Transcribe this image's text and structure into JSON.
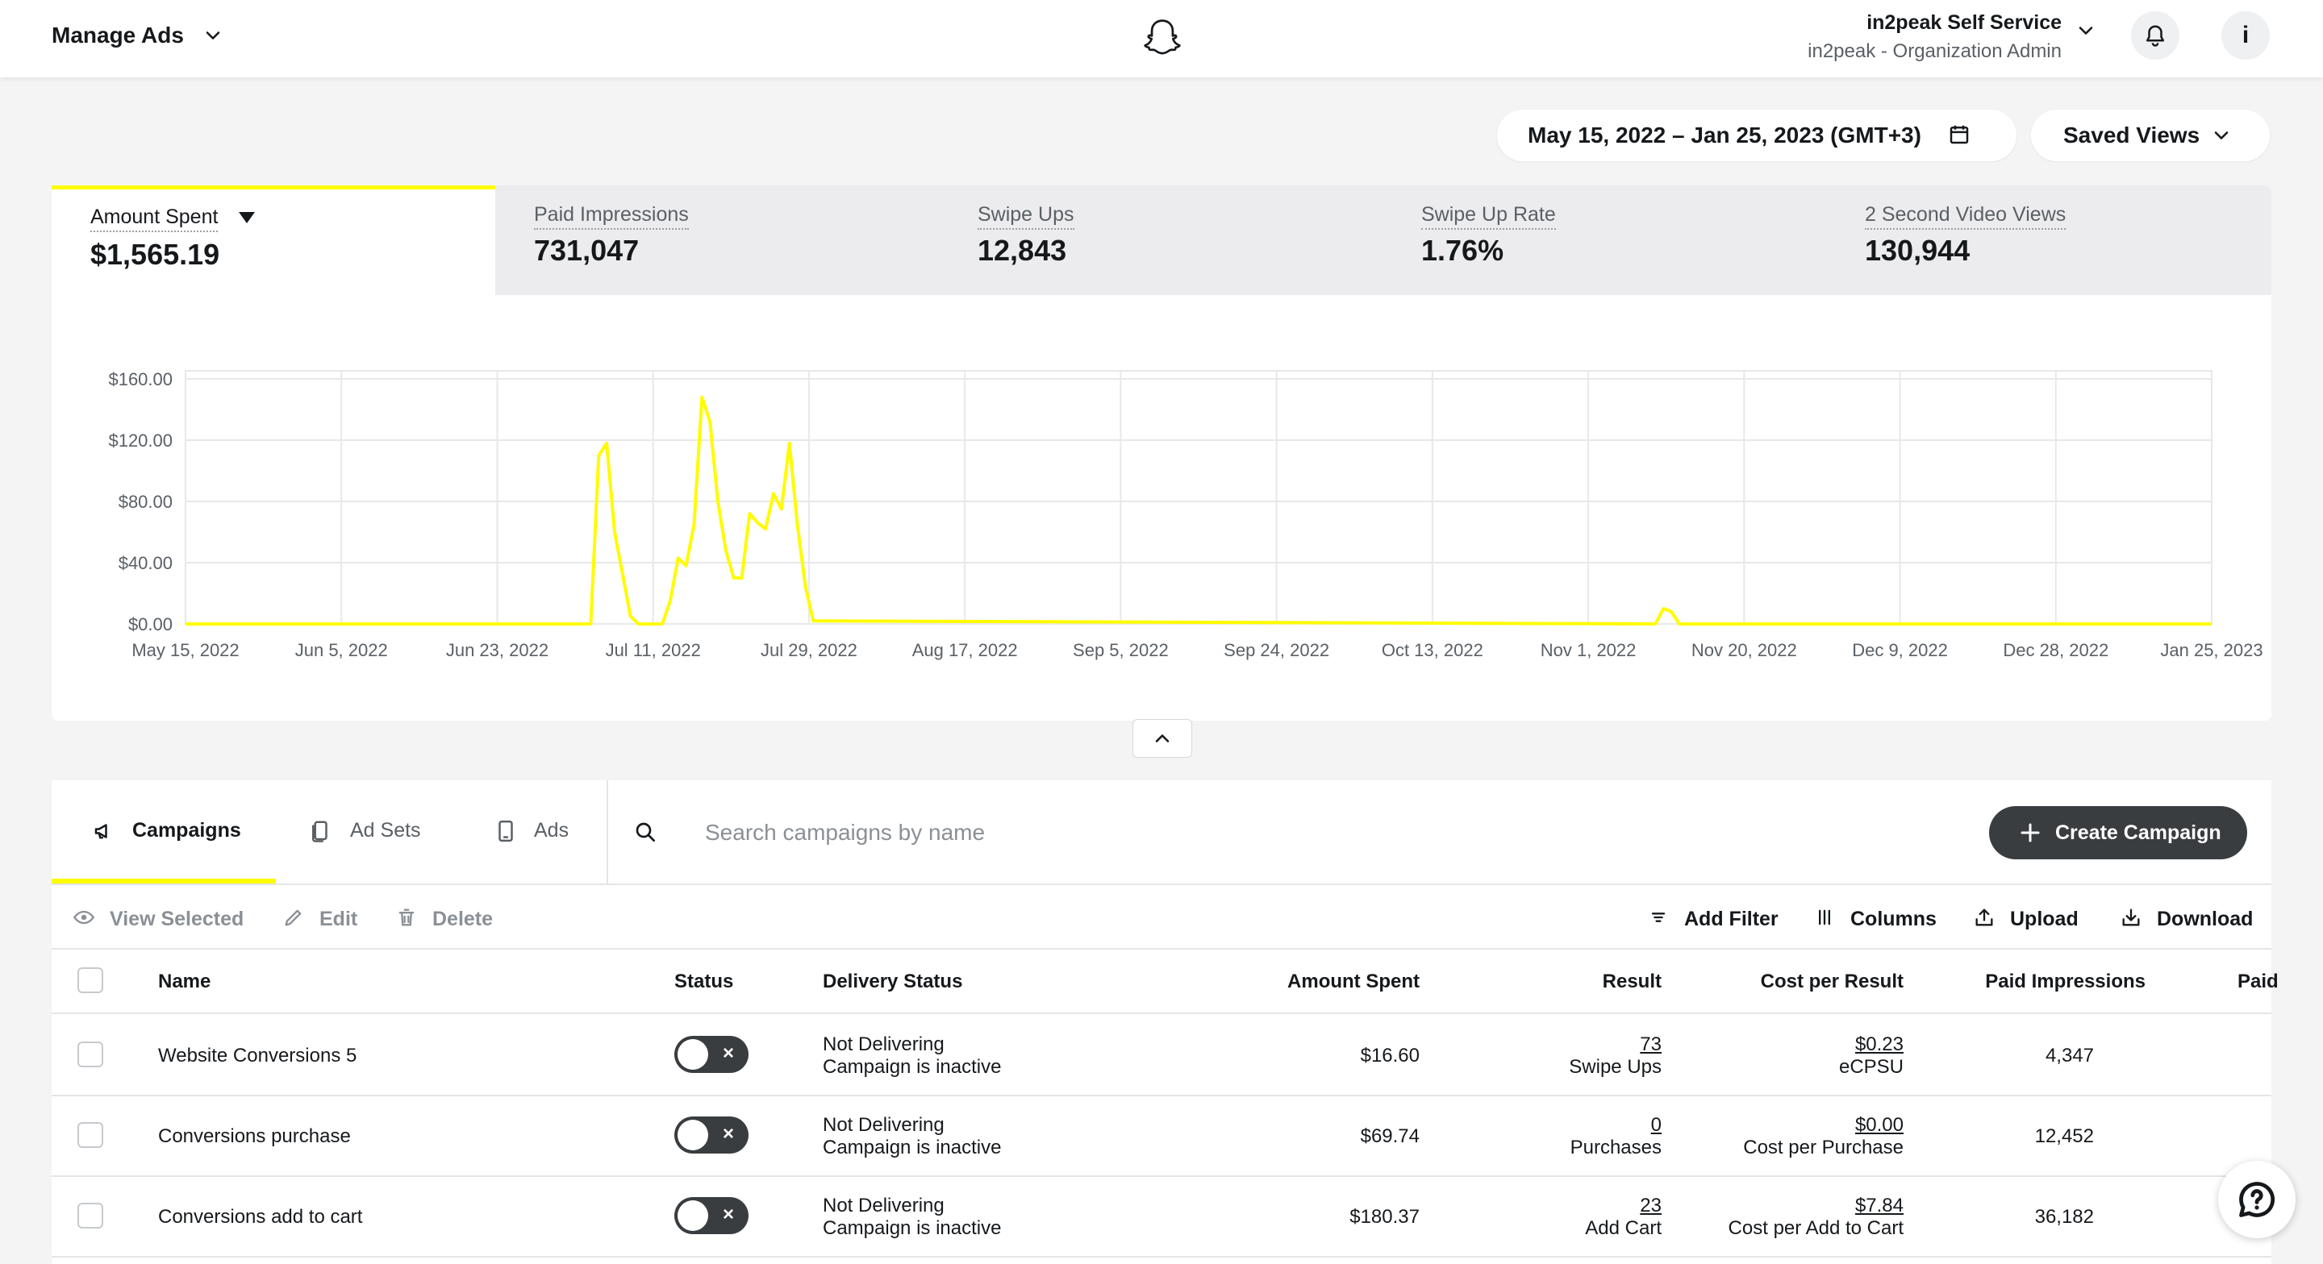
{
  "header": {
    "title": "Manage Ads",
    "account_name": "in2peak Self Service",
    "account_role": "in2peak - Organization Admin",
    "info_label": "i",
    "icons": [
      "chevron-down-icon",
      "ghost-logo-icon",
      "bell-icon",
      "info-icon"
    ]
  },
  "toolbar": {
    "date_range": "May 15, 2022 – Jan 25, 2023 (GMT+3)",
    "saved_views": "Saved Views"
  },
  "metrics": [
    {
      "label": "Amount Spent",
      "value": "$1,565.19",
      "active": true
    },
    {
      "label": "Paid Impressions",
      "value": "731,047",
      "active": false
    },
    {
      "label": "Swipe Ups",
      "value": "12,843",
      "active": false
    },
    {
      "label": "Swipe Up Rate",
      "value": "1.76%",
      "active": false
    },
    {
      "label": "2 Second Video Views",
      "value": "130,944",
      "active": false
    }
  ],
  "chart_data": {
    "type": "line",
    "title": "",
    "xlabel": "",
    "ylabel": "",
    "y_ticks": [
      "$160.00",
      "$120.00",
      "$80.00",
      "$40.00",
      "$0.00"
    ],
    "x_ticks": [
      "May 15, 2022",
      "Jun 5, 2022",
      "Jun 23, 2022",
      "Jul 11, 2022",
      "Jul 29, 2022",
      "Aug 17, 2022",
      "Sep 5, 2022",
      "Sep 24, 2022",
      "Oct 13, 2022",
      "Nov 1, 2022",
      "Nov 20, 2022",
      "Dec 9, 2022",
      "Dec 28, 2022",
      "Jan 25, 2023"
    ],
    "ylim": [
      0,
      160
    ],
    "grid": true,
    "color": "#fffc00",
    "series": [
      {
        "x": [
          "2022-05-15",
          "2022-07-05",
          "2022-07-06",
          "2022-07-07",
          "2022-07-08",
          "2022-07-10",
          "2022-07-11",
          "2022-07-13",
          "2022-07-14",
          "2022-07-15",
          "2022-07-16",
          "2022-07-17",
          "2022-07-18",
          "2022-07-19",
          "2022-07-20",
          "2022-07-21",
          "2022-07-22",
          "2022-07-23",
          "2022-07-24",
          "2022-07-25",
          "2022-07-26",
          "2022-07-27",
          "2022-07-28",
          "2022-07-29",
          "2022-07-30",
          "2022-07-31",
          "2022-08-01",
          "2022-08-02",
          "2022-11-16",
          "2022-11-17",
          "2022-11-18",
          "2022-11-19",
          "2023-01-25"
        ],
        "y": [
          0,
          0,
          110,
          118,
          60,
          5,
          0,
          0,
          0,
          15,
          43,
          38,
          65,
          148,
          132,
          80,
          48,
          30,
          30,
          72,
          66,
          62,
          85,
          75,
          118,
          65,
          25,
          2,
          0,
          10,
          8,
          0,
          0
        ]
      }
    ]
  },
  "table": {
    "tabs": [
      {
        "label": "Campaigns",
        "icon": "megaphone-icon"
      },
      {
        "label": "Ad Sets",
        "icon": "ad-sets-icon"
      },
      {
        "label": "Ads",
        "icon": "phone-icon"
      }
    ],
    "search_placeholder": "Search campaigns by name",
    "create_label": "Create Campaign",
    "actions_left": [
      {
        "label": "View Selected",
        "icon": "eye-icon"
      },
      {
        "label": "Edit",
        "icon": "pencil-icon"
      },
      {
        "label": "Delete",
        "icon": "trash-icon"
      }
    ],
    "actions_right": [
      {
        "label": "Add Filter",
        "icon": "filter-icon"
      },
      {
        "label": "Columns",
        "icon": "columns-icon"
      },
      {
        "label": "Upload",
        "icon": "upload-icon"
      },
      {
        "label": "Download",
        "icon": "download-icon"
      }
    ],
    "headers": {
      "name": "Name",
      "status": "Status",
      "delivery": "Delivery Status",
      "amount": "Amount Spent",
      "result": "Result",
      "cost": "Cost per Result",
      "impressions": "Paid Impressions",
      "more": "Paid"
    },
    "rows": [
      {
        "name": "Website Conversions 5",
        "delivery": "Not Delivering",
        "delivery_sub": "Campaign is inactive",
        "amount": "$16.60",
        "result": "73",
        "result_type": "Swipe Ups",
        "cost": "$0.23",
        "cost_type": "eCPSU",
        "impressions": "4,347"
      },
      {
        "name": "Conversions purchase",
        "delivery": "Not Delivering",
        "delivery_sub": "Campaign is inactive",
        "amount": "$69.74",
        "result": "0",
        "result_type": "Purchases",
        "cost": "$0.00",
        "cost_type": "Cost per Purchase",
        "impressions": "12,452"
      },
      {
        "name": "Conversions add to cart",
        "delivery": "Not Delivering",
        "delivery_sub": "Campaign is inactive",
        "amount": "$180.37",
        "result": "23",
        "result_type": "Add Cart",
        "cost": "$7.84",
        "cost_type": "Cost per Add to Cart",
        "impressions": "36,182"
      }
    ],
    "toggle_x": "×"
  }
}
